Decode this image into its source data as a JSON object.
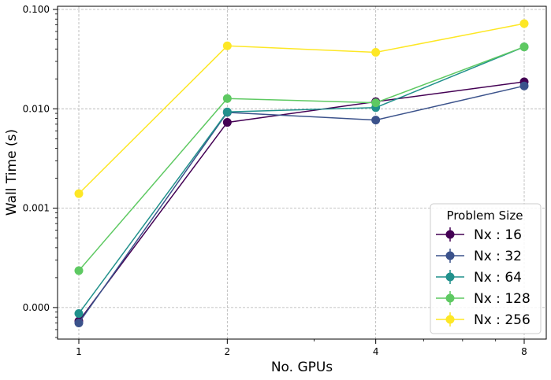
{
  "chart_data": {
    "type": "line",
    "xlabel": "No. GPUs",
    "ylabel": "Wall Time (s)",
    "x_scale": "log2",
    "y_scale": "log",
    "x": [
      1,
      2,
      4,
      8
    ],
    "x_tick_labels": [
      "1",
      "2",
      "4",
      "8"
    ],
    "y_ticks": [
      0.0001,
      0.001,
      0.01,
      0.1
    ],
    "y_tick_labels": [
      "0.000",
      "0.001",
      "0.010",
      "0.100"
    ],
    "ylim": [
      4e-05,
      0.105
    ],
    "grid": true,
    "legend": {
      "title": "Problem Size",
      "position": "bottom-right"
    },
    "series": [
      {
        "name": "Nx : 16",
        "color": "#440154",
        "values": [
          7.3e-05,
          0.0073,
          0.0118,
          0.0187
        ]
      },
      {
        "name": "Nx : 32",
        "color": "#3b528b",
        "values": [
          7e-05,
          0.0092,
          0.0077,
          0.017
        ]
      },
      {
        "name": "Nx : 64",
        "color": "#21918c",
        "values": [
          8.7e-05,
          0.0093,
          0.0103,
          0.042
        ]
      },
      {
        "name": "Nx : 128",
        "color": "#5ec962",
        "values": [
          0.000235,
          0.0127,
          0.0115,
          0.042
        ]
      },
      {
        "name": "Nx : 256",
        "color": "#fde725",
        "values": [
          0.0014,
          0.043,
          0.037,
          0.072
        ]
      }
    ]
  }
}
